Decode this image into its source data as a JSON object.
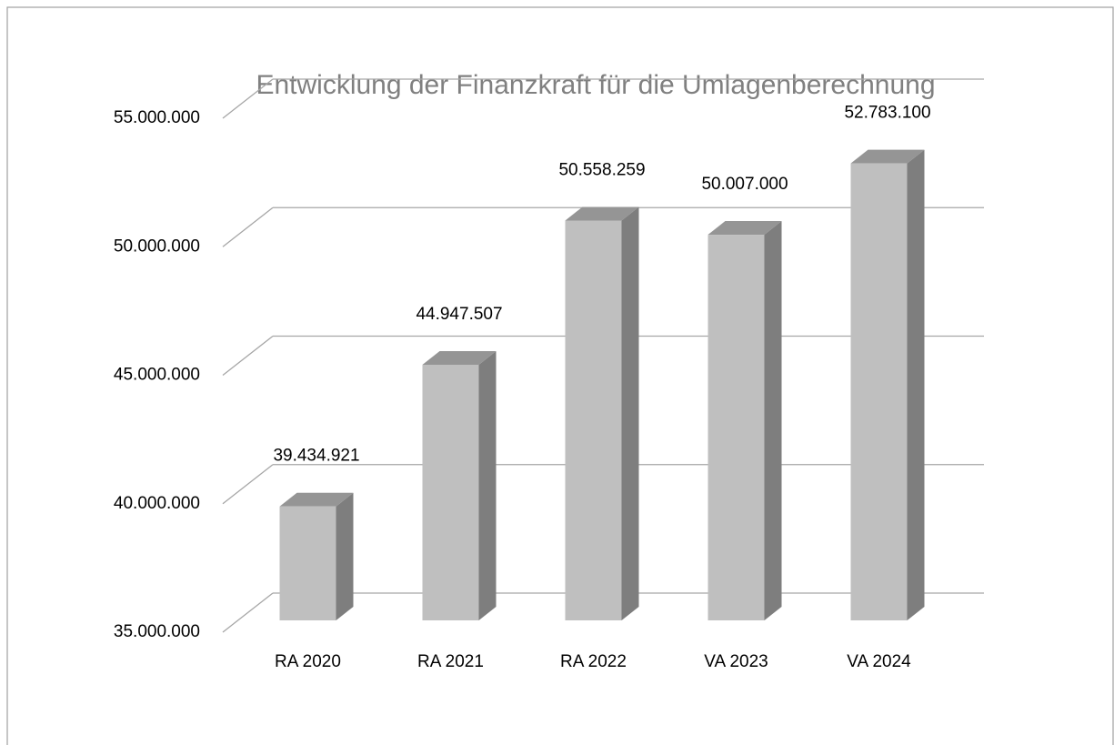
{
  "chart_data": {
    "type": "bar3d",
    "title": "Entwicklung der Finanzkraft für die Umlagenberechnung",
    "categories": [
      "RA 2020",
      "RA 2021",
      "RA 2022",
      "VA 2023",
      "VA 2024"
    ],
    "values": [
      39434921,
      44947507,
      50558259,
      50007000,
      52783100
    ],
    "value_labels": [
      "39.434.921",
      "44.947.507",
      "50.558.259",
      "50.007.000",
      "52.783.100"
    ],
    "color": "#bfbfbf",
    "ylim": [
      35000000,
      55000000
    ],
    "yticks": [
      {
        "value": 35000000,
        "label": "35.000.000"
      },
      {
        "value": 40000000,
        "label": "40.000.000"
      },
      {
        "value": 45000000,
        "label": "45.000.000"
      },
      {
        "value": 50000000,
        "label": "50.000.000"
      },
      {
        "value": 55000000,
        "label": "55.000.000"
      }
    ],
    "grid": true
  }
}
